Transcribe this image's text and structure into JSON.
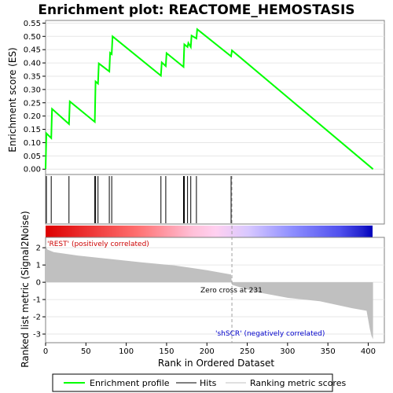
{
  "chart_data": {
    "type": "line",
    "title": "Enrichment plot: REACTOME_HEMOSTASIS",
    "es_panel": {
      "ylabel": "Enrichment score (ES)",
      "ylim": [
        -0.02,
        0.56
      ],
      "yticks": [
        "0.00",
        "0.05",
        "0.10",
        "0.15",
        "0.20",
        "0.25",
        "0.30",
        "0.35",
        "0.40",
        "0.45",
        "0.50",
        "0.55"
      ],
      "ytick_values": [
        0,
        0.05,
        0.1,
        0.15,
        0.2,
        0.25,
        0.3,
        0.35,
        0.4,
        0.45,
        0.5,
        0.55
      ],
      "series": [
        {
          "name": "Enrichment profile",
          "color": "#00ff00",
          "x": [
            0,
            1,
            7,
            8,
            29,
            30,
            61,
            62,
            65,
            66,
            79,
            80,
            82,
            83,
            143,
            144,
            149,
            150,
            171,
            172,
            176,
            177,
            180,
            181,
            187,
            188,
            230,
            231,
            406
          ],
          "y": [
            0,
            0.135,
            0.117,
            0.227,
            0.17,
            0.255,
            0.178,
            0.33,
            0.322,
            0.398,
            0.368,
            0.438,
            0.433,
            0.5,
            0.352,
            0.402,
            0.388,
            0.437,
            0.385,
            0.47,
            0.46,
            0.475,
            0.46,
            0.503,
            0.492,
            0.527,
            0.425,
            0.447,
            0
          ]
        }
      ]
    },
    "hits": [
      1,
      7,
      29,
      61,
      62,
      65,
      79,
      82,
      143,
      149,
      171,
      172,
      176,
      180,
      187,
      230
    ],
    "metric_panel": {
      "ylabel": "Ranked list metric (Signal2Noise)",
      "xlabel": "Rank in Ordered Dataset",
      "xlim": [
        0,
        420
      ],
      "xticks": [
        0,
        50,
        100,
        150,
        200,
        250,
        300,
        350,
        400
      ],
      "ylim": [
        -3.5,
        2.6
      ],
      "yticks": [
        2,
        1,
        0,
        -1,
        -2,
        -3
      ],
      "zero_cross_label": "Zero cross at 231",
      "zero_cross": 231,
      "pos_label": "'REST' (positively correlated)",
      "neg_label": "'shSCR' (negatively correlated)",
      "profile_x": [
        0,
        2,
        10,
        40,
        80,
        120,
        160,
        200,
        230,
        231,
        260,
        300,
        340,
        380,
        398,
        402,
        404,
        406
      ],
      "profile_y": [
        2.2,
        1.9,
        1.75,
        1.55,
        1.35,
        1.15,
        0.97,
        0.7,
        0.45,
        -0.15,
        -0.55,
        -0.9,
        -1.1,
        -1.5,
        -1.65,
        -2.7,
        -3.1,
        -3.3
      ],
      "fill_color": "#c0c0c0"
    },
    "legend": {
      "items": [
        {
          "label": "Enrichment profile",
          "color": "#00ff00"
        },
        {
          "label": "Hits",
          "color": "#000000"
        },
        {
          "label": "Ranking metric scores",
          "color": "#c0c0c0"
        }
      ]
    }
  }
}
